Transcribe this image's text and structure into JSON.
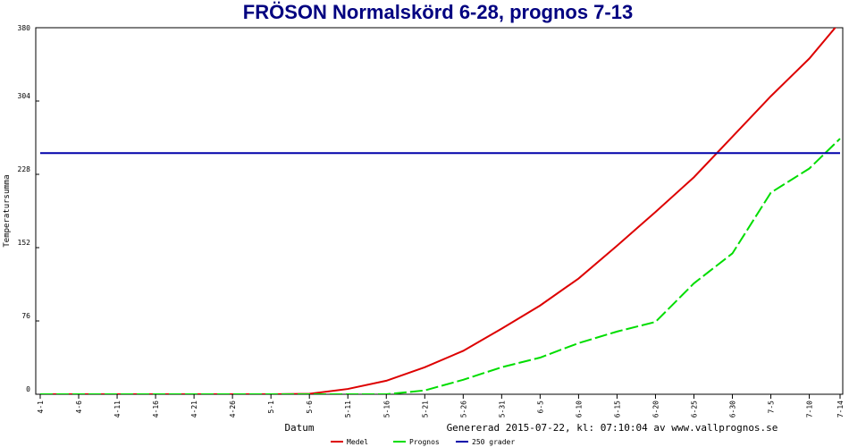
{
  "chart_data": {
    "type": "line",
    "title": "FRÖSON Normalskörd 6-28, prognos 7-13",
    "y_label": "Temperatursumma",
    "x_label": "Datum",
    "footer": "Genererad 2015-07-22, kl: 07:10:04 av www.vallprognos.se",
    "xlim": [
      0,
      104
    ],
    "xticks": [
      {
        "value": 0,
        "label": "4-1"
      },
      {
        "value": 5,
        "label": "4-6"
      },
      {
        "value": 10,
        "label": "4-11"
      },
      {
        "value": 15,
        "label": "4-16"
      },
      {
        "value": 20,
        "label": "4-21"
      },
      {
        "value": 25,
        "label": "4-26"
      },
      {
        "value": 30,
        "label": "5-1"
      },
      {
        "value": 35,
        "label": "5-6"
      },
      {
        "value": 40,
        "label": "5-11"
      },
      {
        "value": 45,
        "label": "5-16"
      },
      {
        "value": 50,
        "label": "5-21"
      },
      {
        "value": 55,
        "label": "5-26"
      },
      {
        "value": 60,
        "label": "5-31"
      },
      {
        "value": 65,
        "label": "6-5"
      },
      {
        "value": 70,
        "label": "6-10"
      },
      {
        "value": 75,
        "label": "6-15"
      },
      {
        "value": 80,
        "label": "6-20"
      },
      {
        "value": 85,
        "label": "6-25"
      },
      {
        "value": 90,
        "label": "6-30"
      },
      {
        "value": 95,
        "label": "7-5"
      },
      {
        "value": 100,
        "label": "7-10"
      },
      {
        "value": 104,
        "label": "7-14"
      }
    ],
    "ylim": [
      0,
      380
    ],
    "yticks": [
      0,
      76,
      152,
      228,
      304,
      380
    ],
    "series": [
      {
        "name": "Medel",
        "color": "#dd0000",
        "dashed": false,
        "x": [
          0,
          5,
          10,
          15,
          20,
          25,
          30,
          35,
          40,
          45,
          50,
          55,
          60,
          65,
          70,
          75,
          80,
          85,
          90,
          95,
          100,
          104
        ],
        "values": [
          0,
          0,
          0,
          0,
          0,
          0,
          0,
          0.5,
          5.5,
          14,
          28,
          45,
          68,
          92,
          120,
          154,
          189,
          225,
          267,
          309,
          348,
          386
        ]
      },
      {
        "name": "Prognos",
        "color": "#00dd00",
        "dashed": true,
        "x": [
          0,
          5,
          10,
          15,
          20,
          25,
          30,
          35,
          40,
          45,
          50,
          55,
          60,
          65,
          70,
          75,
          80,
          85,
          90,
          95,
          100,
          104
        ],
        "values": [
          0,
          0,
          0,
          0,
          0,
          0,
          0,
          0,
          0,
          0,
          4,
          15,
          28,
          38,
          53,
          65,
          75,
          115,
          146,
          209,
          234,
          265
        ]
      },
      {
        "name": "250 grader",
        "color": "#0000aa",
        "dashed": false,
        "x": [
          0,
          104
        ],
        "values": [
          250,
          250
        ]
      }
    ]
  }
}
